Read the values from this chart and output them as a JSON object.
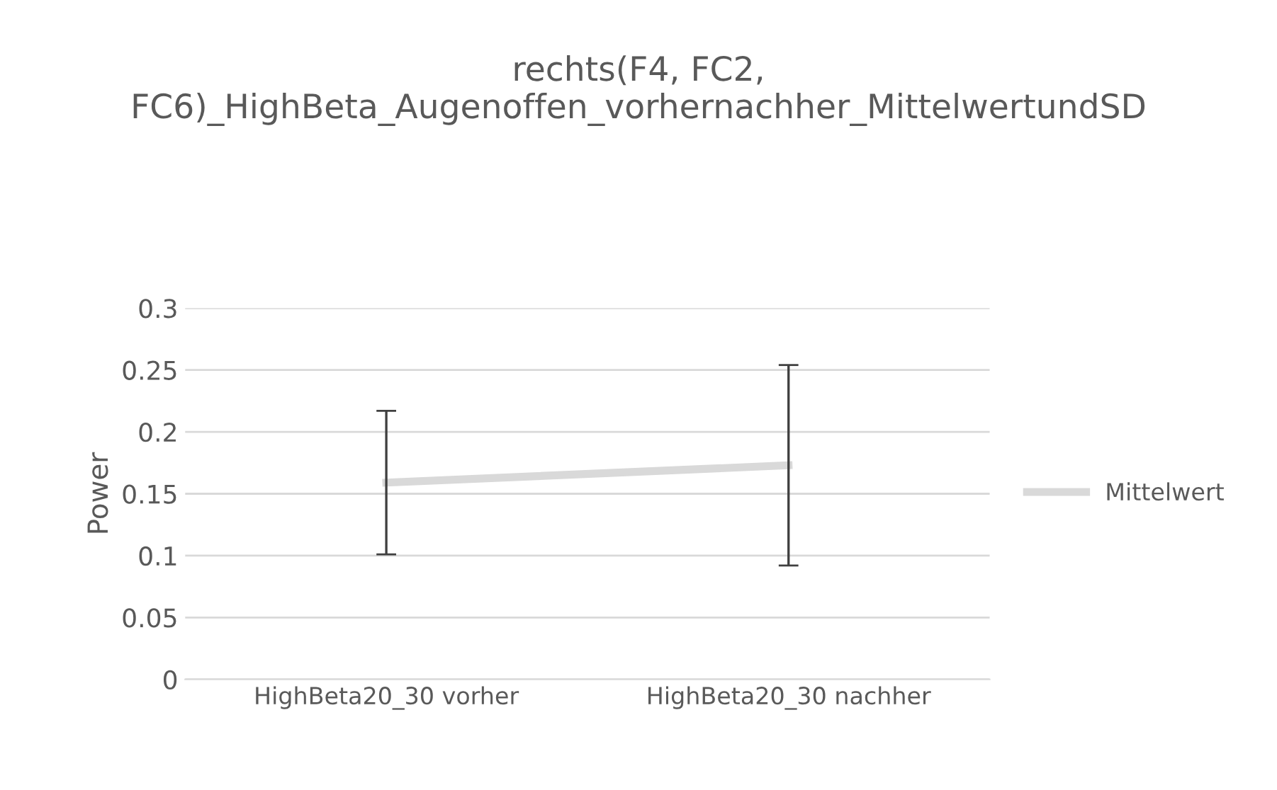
{
  "chart_data": {
    "type": "line",
    "title": "rechts(F4, FC2, FC6)_HighBeta_Augenoffen_vorhernachher_MittelwertundSD",
    "ylabel": "Power",
    "categories": [
      "HighBeta20_30 vorher",
      "HighBeta20_30 nachher"
    ],
    "series": [
      {
        "name": "Mittelwert",
        "color": "#d9d9d9",
        "values": [
          0.159,
          0.173
        ],
        "errors": [
          0.058,
          0.081
        ]
      }
    ],
    "ylim": [
      0,
      0.3
    ],
    "yticks": [
      0,
      0.05,
      0.1,
      0.15,
      0.2,
      0.25,
      0.3
    ],
    "grid": "y",
    "legend": "right",
    "marker": "none",
    "line_style": "solid"
  }
}
